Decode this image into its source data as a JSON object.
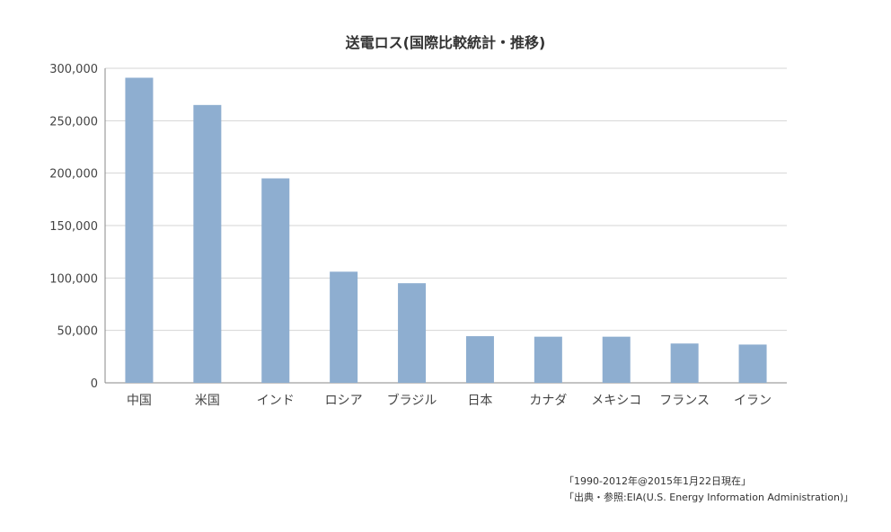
{
  "chart_data": {
    "type": "bar",
    "title": "送電ロス(国際比較統計・推移)",
    "xlabel": "",
    "ylabel": "",
    "categories": [
      "中国",
      "米国",
      "インド",
      "ロシア",
      "ブラジル",
      "日本",
      "カナダ",
      "メキシコ",
      "フランス",
      "イラン"
    ],
    "values": [
      291000,
      265000,
      195000,
      106000,
      95000,
      44500,
      44000,
      44000,
      37500,
      36500
    ],
    "ylim": [
      0,
      300000
    ],
    "yticks": [
      0,
      50000,
      100000,
      150000,
      200000,
      250000,
      300000
    ],
    "ytick_labels": [
      "0",
      "50,000",
      "100,000",
      "150,000",
      "200,000",
      "250,000",
      "300,000"
    ],
    "grid": true,
    "bar_color": "#8eaed0",
    "grid_color": "#d4d4d4",
    "axis_color": "#888888"
  },
  "notes": {
    "line1": "「1990-2012年@2015年1月22日現在」",
    "line2": "「出典・参照:EIA(U.S. Energy Information Administration)」"
  }
}
